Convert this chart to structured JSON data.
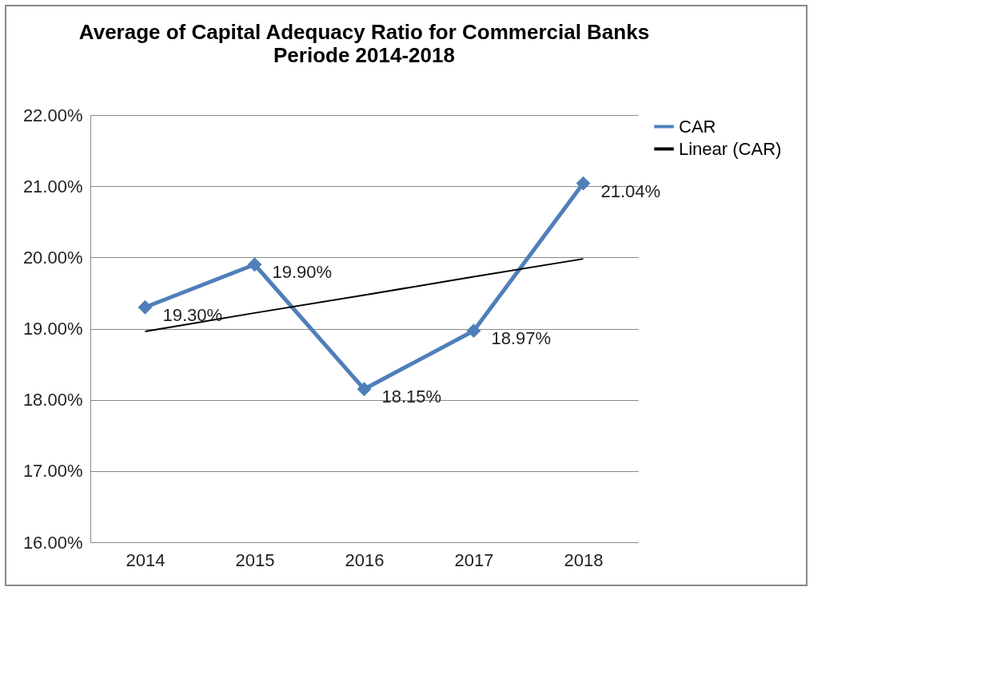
{
  "chart_data": {
    "type": "line",
    "title": "Average of Capital Adequacy Ratio for Commercial Banks",
    "subtitle": "Periode 2014-2018",
    "categories": [
      "2014",
      "2015",
      "2016",
      "2017",
      "2018"
    ],
    "series": [
      {
        "name": "CAR",
        "color": "#4f7fba",
        "marker": "diamond",
        "values": [
          19.3,
          19.9,
          18.15,
          18.97,
          21.04
        ],
        "value_labels": [
          "19.30%",
          "19.90%",
          "18.15%",
          "18.97%",
          "21.04%"
        ]
      },
      {
        "name": "Linear (CAR)",
        "type": "line",
        "color": "#000000",
        "marker": "none",
        "values": [
          18.96,
          19.22,
          19.47,
          19.73,
          19.98
        ]
      }
    ],
    "ylim": [
      16,
      22
    ],
    "yticks": [
      {
        "value": 16,
        "label": "16.00%"
      },
      {
        "value": 17,
        "label": "17.00%"
      },
      {
        "value": 18,
        "label": "18.00%"
      },
      {
        "value": 19,
        "label": "19.00%"
      },
      {
        "value": 20,
        "label": "20.00%"
      },
      {
        "value": 21,
        "label": "21.00%"
      },
      {
        "value": 22,
        "label": "22.00%"
      }
    ],
    "grid": "y",
    "legend": "right"
  }
}
